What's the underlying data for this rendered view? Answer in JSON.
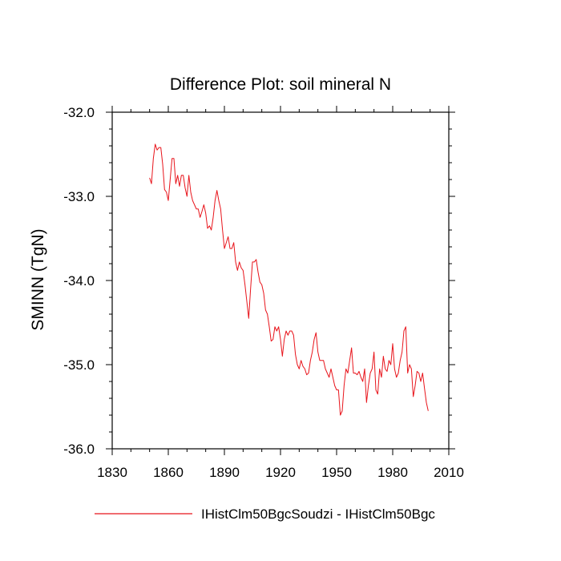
{
  "chart_data": {
    "type": "line",
    "title": "Difference Plot: soil mineral N",
    "ylabel": "SMINN  (TgN)",
    "xlabel": "",
    "xlim": [
      1830,
      2010
    ],
    "ylim": [
      -36.0,
      -32.0
    ],
    "x_ticks": [
      "1830",
      "1860",
      "1890",
      "1920",
      "1950",
      "1980",
      "2010"
    ],
    "x_tick_values": [
      1830,
      1860,
      1890,
      1920,
      1950,
      1980,
      2010
    ],
    "y_ticks": [
      "-32.0",
      "-33.0",
      "-34.0",
      "-35.0",
      "-36.0"
    ],
    "y_tick_values": [
      -32.0,
      -33.0,
      -34.0,
      -35.0,
      -36.0
    ],
    "grid": false,
    "legend_position": "bottom",
    "series": [
      {
        "name": "IHistClm50BgcSoudzi - IHistClm50Bgc",
        "color": "#e8141b",
        "x_start": 1850,
        "x_step": 1,
        "values": [
          -32.78,
          -32.85,
          -32.55,
          -32.38,
          -32.45,
          -32.42,
          -32.42,
          -32.62,
          -32.92,
          -32.95,
          -33.05,
          -32.8,
          -32.55,
          -32.55,
          -32.85,
          -32.75,
          -32.88,
          -32.75,
          -32.75,
          -32.9,
          -33.0,
          -32.75,
          -32.95,
          -33.05,
          -33.1,
          -33.15,
          -33.15,
          -33.25,
          -33.18,
          -33.1,
          -33.2,
          -33.38,
          -33.35,
          -33.4,
          -33.25,
          -33.05,
          -32.93,
          -33.05,
          -33.15,
          -33.4,
          -33.62,
          -33.55,
          -33.48,
          -33.62,
          -33.62,
          -33.55,
          -33.78,
          -33.88,
          -33.78,
          -33.85,
          -33.88,
          -34.05,
          -34.25,
          -34.45,
          -34.1,
          -33.78,
          -33.78,
          -33.75,
          -33.9,
          -34.02,
          -34.05,
          -34.15,
          -34.35,
          -34.4,
          -34.55,
          -34.72,
          -34.7,
          -34.55,
          -34.6,
          -34.55,
          -34.7,
          -34.9,
          -34.7,
          -34.6,
          -34.65,
          -34.6,
          -34.6,
          -34.65,
          -34.88,
          -35.0,
          -35.05,
          -34.95,
          -35.02,
          -35.05,
          -35.12,
          -35.1,
          -34.95,
          -34.85,
          -34.7,
          -34.62,
          -34.85,
          -34.95,
          -34.95,
          -34.95,
          -35.05,
          -35.1,
          -35.15,
          -35.05,
          -35.15,
          -35.25,
          -35.3,
          -35.3,
          -35.6,
          -35.55,
          -35.25,
          -35.05,
          -35.1,
          -34.95,
          -34.8,
          -35.1,
          -35.1,
          -35.12,
          -35.08,
          -35.15,
          -35.2,
          -35.05,
          -35.45,
          -35.25,
          -35.1,
          -35.05,
          -34.85,
          -35.3,
          -35.35,
          -35.05,
          -35.15,
          -34.9,
          -35.05,
          -35.08,
          -34.95,
          -35.0,
          -34.75,
          -35.05,
          -35.15,
          -35.1,
          -34.95,
          -34.85,
          -34.6,
          -34.55,
          -35.1,
          -35.0,
          -35.05,
          -35.38,
          -35.25,
          -35.08,
          -35.1,
          -35.2,
          -35.1,
          -35.28,
          -35.45,
          -35.55
        ]
      }
    ]
  }
}
